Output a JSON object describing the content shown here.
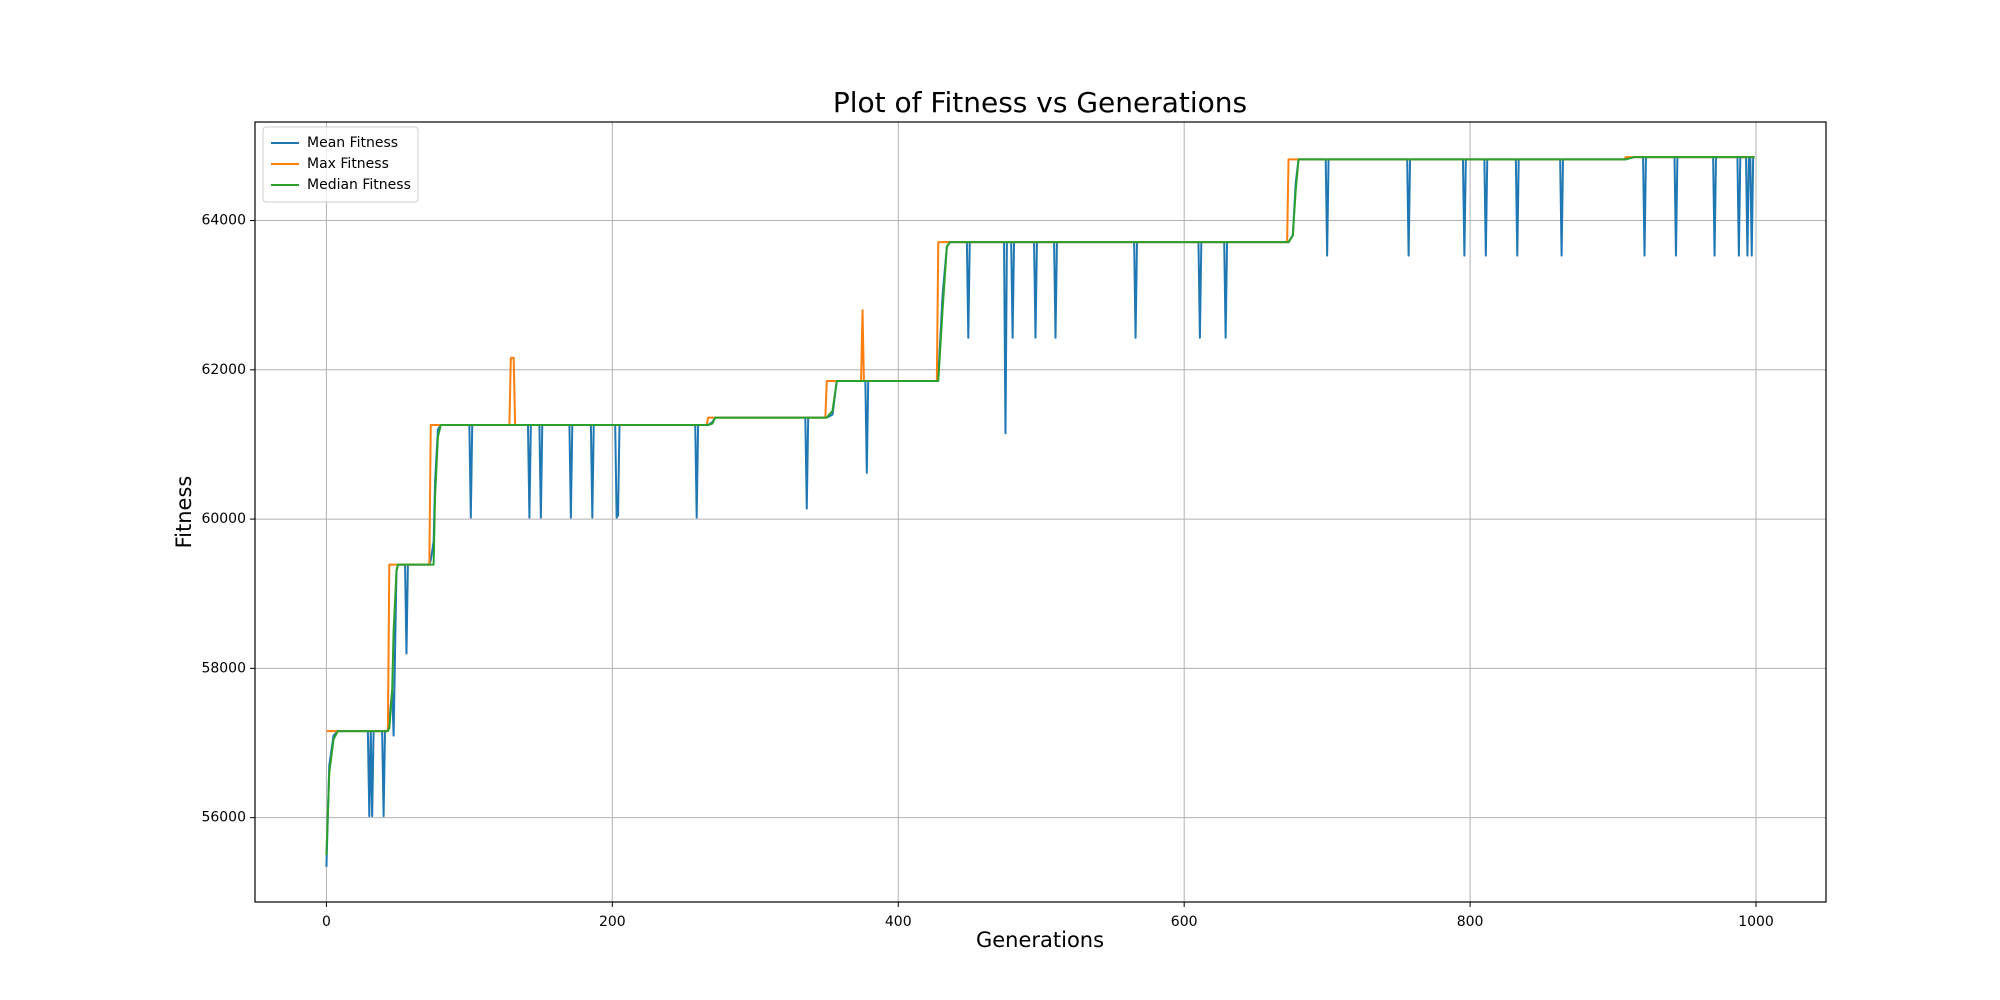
{
  "chart_data": {
    "type": "line",
    "title": "Plot of Fitness vs Generations",
    "x_label": "Generations",
    "y_label": "Fitness",
    "x": [
      0,
      2,
      5,
      8,
      29,
      30,
      31,
      32,
      33,
      39,
      40,
      41,
      43,
      44,
      46,
      47,
      49,
      50,
      55,
      56,
      57,
      72,
      73,
      75,
      76,
      78,
      80,
      100,
      101,
      102,
      128,
      129,
      131,
      132,
      141,
      142,
      143,
      149,
      150,
      151,
      170,
      171,
      172,
      185,
      186,
      187,
      202,
      203,
      204,
      205,
      258,
      259,
      260,
      266,
      267,
      270,
      272,
      335,
      336,
      337,
      349,
      350,
      354,
      357,
      374,
      375,
      376,
      377,
      378,
      379,
      427,
      428,
      431,
      434,
      436,
      448,
      449,
      450,
      474,
      475,
      476,
      479,
      480,
      481,
      495,
      496,
      497,
      509,
      510,
      511,
      565,
      566,
      567,
      610,
      611,
      612,
      628,
      629,
      630,
      672,
      673,
      676,
      678,
      680,
      699,
      700,
      701,
      756,
      757,
      758,
      795,
      796,
      797,
      810,
      811,
      812,
      832,
      833,
      834,
      863,
      864,
      865,
      908,
      909,
      915,
      921,
      922,
      923,
      943,
      944,
      945,
      970,
      971,
      972,
      987,
      988,
      989,
      993,
      994,
      995,
      996,
      997,
      998,
      999
    ],
    "series": [
      {
        "name": "Mean Fitness",
        "color": "#1f77b4",
        "values": [
          55340,
          56700,
          57100,
          57160,
          57160,
          56020,
          57160,
          56020,
          57160,
          57160,
          56020,
          57160,
          57160,
          57300,
          57700,
          57100,
          59300,
          59390,
          59390,
          58200,
          59390,
          59390,
          59450,
          59700,
          60500,
          61200,
          61260,
          61260,
          60020,
          61260,
          61260,
          61260,
          61260,
          61260,
          61260,
          60020,
          61260,
          61260,
          60020,
          61260,
          61260,
          60020,
          61260,
          61260,
          60020,
          61260,
          61260,
          60020,
          60050,
          61260,
          61260,
          60020,
          61260,
          61260,
          61260,
          61300,
          61360,
          61360,
          60140,
          61360,
          61360,
          61360,
          61400,
          61850,
          61850,
          61850,
          61850,
          61850,
          60620,
          61850,
          61850,
          61900,
          63000,
          63650,
          63710,
          63710,
          62430,
          63710,
          63710,
          61150,
          63710,
          63710,
          62430,
          63710,
          63710,
          62430,
          63710,
          63710,
          62430,
          63710,
          63710,
          62430,
          63710,
          63710,
          62430,
          63710,
          63710,
          62430,
          63710,
          63710,
          63710,
          63800,
          64500,
          64820,
          64820,
          63530,
          64820,
          64820,
          63530,
          64820,
          64820,
          63530,
          64820,
          64820,
          63530,
          64820,
          64820,
          63530,
          64820,
          64820,
          63530,
          64820,
          64820,
          64820,
          64850,
          64850,
          63530,
          64850,
          64850,
          63530,
          64850,
          64850,
          63530,
          64850,
          64850,
          63530,
          64850,
          64850,
          63530,
          64850,
          64850,
          63530,
          64850,
          64850
        ]
      },
      {
        "name": "Max Fitness",
        "color": "#ff7f0e",
        "values": [
          57160,
          57160,
          57160,
          57160,
          57160,
          57160,
          57160,
          57160,
          57160,
          57160,
          57160,
          57160,
          57160,
          59390,
          59390,
          59390,
          59390,
          59390,
          59390,
          59390,
          59390,
          59390,
          61260,
          61260,
          61260,
          61260,
          61260,
          61260,
          61260,
          61260,
          61260,
          62160,
          62160,
          61260,
          61260,
          61260,
          61260,
          61260,
          61260,
          61260,
          61260,
          61260,
          61260,
          61260,
          61260,
          61260,
          61260,
          61260,
          61260,
          61260,
          61260,
          61260,
          61260,
          61260,
          61360,
          61360,
          61360,
          61360,
          61360,
          61360,
          61360,
          61850,
          61850,
          61850,
          61850,
          62800,
          61850,
          61850,
          61850,
          61850,
          61850,
          63710,
          63710,
          63710,
          63710,
          63710,
          63710,
          63710,
          63710,
          63710,
          63710,
          63710,
          63710,
          63710,
          63710,
          63710,
          63710,
          63710,
          63710,
          63710,
          63710,
          63710,
          63710,
          63710,
          63710,
          63710,
          63710,
          63710,
          63710,
          63710,
          64820,
          64820,
          64820,
          64820,
          64820,
          64820,
          64820,
          64820,
          64820,
          64820,
          64820,
          64820,
          64820,
          64820,
          64820,
          64820,
          64820,
          64820,
          64820,
          64820,
          64820,
          64820,
          64820,
          64850,
          64850,
          64850,
          64850,
          64850,
          64850,
          64850,
          64850,
          64850,
          64850,
          64850,
          64850,
          64850,
          64850,
          64850,
          64850,
          64850,
          64850,
          64850,
          64850,
          64850
        ]
      },
      {
        "name": "Median Fitness",
        "color": "#2ca02c",
        "values": [
          55500,
          56600,
          57050,
          57160,
          57160,
          57160,
          57160,
          57160,
          57160,
          57160,
          57160,
          57160,
          57160,
          57200,
          57700,
          58500,
          59300,
          59390,
          59390,
          59390,
          59390,
          59390,
          59390,
          59390,
          60300,
          61100,
          61260,
          61260,
          61260,
          61260,
          61260,
          61260,
          61260,
          61260,
          61260,
          61260,
          61260,
          61260,
          61260,
          61260,
          61260,
          61260,
          61260,
          61260,
          61260,
          61260,
          61260,
          61260,
          61260,
          61260,
          61260,
          61260,
          61260,
          61260,
          61260,
          61280,
          61360,
          61360,
          61360,
          61360,
          61360,
          61360,
          61450,
          61850,
          61850,
          61850,
          61850,
          61850,
          61850,
          61850,
          61850,
          61850,
          62800,
          63650,
          63710,
          63710,
          63710,
          63710,
          63710,
          63710,
          63710,
          63710,
          63710,
          63710,
          63710,
          63710,
          63710,
          63710,
          63710,
          63710,
          63710,
          63710,
          63710,
          63710,
          63710,
          63710,
          63710,
          63710,
          63710,
          63710,
          63710,
          63800,
          64400,
          64820,
          64820,
          64820,
          64820,
          64820,
          64820,
          64820,
          64820,
          64820,
          64820,
          64820,
          64820,
          64820,
          64820,
          64820,
          64820,
          64820,
          64820,
          64820,
          64820,
          64820,
          64850,
          64850,
          64850,
          64850,
          64850,
          64850,
          64850,
          64850,
          64850,
          64850,
          64850,
          64850,
          64850,
          64850,
          64850,
          64850,
          64850,
          64850,
          64850,
          64850
        ]
      }
    ],
    "xlim": [
      -49.95,
      1048.95
    ],
    "xticks": [
      0,
      200,
      400,
      600,
      800,
      1000
    ],
    "ylim": [
      54870,
      65320
    ],
    "yticks": [
      56000,
      58000,
      60000,
      62000,
      64000
    ],
    "grid": true,
    "legend": "upper-left"
  }
}
